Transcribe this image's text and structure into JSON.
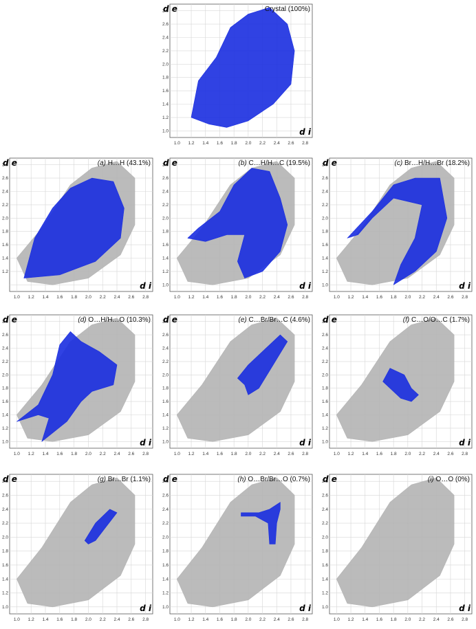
{
  "figure": {
    "axis_x_label": "d i",
    "axis_y_label": "d e"
  },
  "chart_data": [
    {
      "type": "scatter",
      "panel": "crystal",
      "title_prefix": "",
      "title_text": "Crystal (100%)",
      "xlabel": "d i",
      "ylabel": "d e",
      "xlim": [
        0.9,
        2.9
      ],
      "ylim": [
        0.9,
        2.9
      ],
      "xticks": [
        "1.0",
        "1.2",
        "1.4",
        "1.6",
        "1.8",
        "2.0",
        "2.2",
        "2.4",
        "2.6",
        "2.8"
      ],
      "yticks": [
        "1.0",
        "1.2",
        "1.4",
        "1.6",
        "1.8",
        "2.0",
        "2.2",
        "2.4",
        "2.6",
        "2.8"
      ],
      "highlight_color": "#1a2ee0",
      "background_color": "#b4b4b4",
      "highlight_region": [
        [
          1.2,
          1.2
        ],
        [
          1.3,
          1.75
        ],
        [
          1.55,
          2.1
        ],
        [
          1.75,
          2.55
        ],
        [
          2.0,
          2.75
        ],
        [
          2.3,
          2.85
        ],
        [
          2.55,
          2.6
        ],
        [
          2.65,
          2.2
        ],
        [
          2.6,
          1.7
        ],
        [
          2.35,
          1.4
        ],
        [
          2.0,
          1.15
        ],
        [
          1.7,
          1.05
        ],
        [
          1.45,
          1.1
        ]
      ],
      "background_region": null
    },
    {
      "type": "scatter",
      "panel": "a",
      "title_prefix": "(a)",
      "title_text": " H…H (43.1%)",
      "xlabel": "d i",
      "ylabel": "d e",
      "xlim": [
        0.9,
        2.9
      ],
      "ylim": [
        0.9,
        2.9
      ],
      "xticks": [
        "1.0",
        "1.2",
        "1.4",
        "1.6",
        "1.8",
        "2.0",
        "2.2",
        "2.4",
        "2.6",
        "2.8"
      ],
      "yticks": [
        "1.2",
        "1.4",
        "1.6",
        "1.8",
        "2.0",
        "2.2",
        "2.4",
        "2.6",
        "2.8"
      ],
      "highlight_color": "#1a2ee0",
      "background_color": "#b4b4b4",
      "highlight_region": [
        [
          1.1,
          1.1
        ],
        [
          1.25,
          1.7
        ],
        [
          1.5,
          2.15
        ],
        [
          1.75,
          2.45
        ],
        [
          2.05,
          2.6
        ],
        [
          2.35,
          2.55
        ],
        [
          2.5,
          2.15
        ],
        [
          2.45,
          1.7
        ],
        [
          2.1,
          1.35
        ],
        [
          1.6,
          1.15
        ]
      ],
      "background_region": [
        [
          1.0,
          1.4
        ],
        [
          1.35,
          1.85
        ],
        [
          1.75,
          2.5
        ],
        [
          2.05,
          2.75
        ],
        [
          2.4,
          2.85
        ],
        [
          2.65,
          2.6
        ],
        [
          2.65,
          1.9
        ],
        [
          2.45,
          1.45
        ],
        [
          2.0,
          1.1
        ],
        [
          1.5,
          1.0
        ],
        [
          1.15,
          1.05
        ]
      ]
    },
    {
      "type": "scatter",
      "panel": "b",
      "title_prefix": "(b)",
      "title_text": " C…H/H…C (19.5%)",
      "xlabel": "d i",
      "ylabel": "d e",
      "xlim": [
        0.9,
        2.9
      ],
      "ylim": [
        0.9,
        2.9
      ],
      "xticks": [
        "1.0",
        "1.2",
        "1.4",
        "1.6",
        "1.8",
        "2.0",
        "2.2",
        "2.4",
        "2.6",
        "2.8"
      ],
      "yticks": [
        "1.0",
        "1.2",
        "1.4",
        "1.6",
        "1.8",
        "2.0",
        "2.2",
        "2.4",
        "2.6",
        "2.8"
      ],
      "highlight_color": "#1a2ee0",
      "background_color": "#b4b4b4",
      "highlight_region": [
        [
          1.15,
          1.7
        ],
        [
          1.3,
          1.85
        ],
        [
          1.6,
          2.1
        ],
        [
          1.8,
          2.5
        ],
        [
          2.05,
          2.75
        ],
        [
          2.3,
          2.7
        ],
        [
          2.45,
          2.3
        ],
        [
          2.55,
          1.9
        ],
        [
          2.45,
          1.5
        ],
        [
          2.2,
          1.2
        ],
        [
          1.95,
          1.1
        ],
        [
          1.85,
          1.35
        ],
        [
          1.95,
          1.75
        ],
        [
          1.7,
          1.75
        ],
        [
          1.4,
          1.65
        ]
      ],
      "background_region": [
        [
          1.0,
          1.4
        ],
        [
          1.35,
          1.85
        ],
        [
          1.75,
          2.5
        ],
        [
          2.05,
          2.75
        ],
        [
          2.4,
          2.85
        ],
        [
          2.65,
          2.6
        ],
        [
          2.65,
          1.9
        ],
        [
          2.45,
          1.45
        ],
        [
          2.0,
          1.1
        ],
        [
          1.5,
          1.0
        ],
        [
          1.15,
          1.05
        ]
      ]
    },
    {
      "type": "scatter",
      "panel": "c",
      "title_prefix": "(c)",
      "title_text": " Br…H/H…Br (18.2%)",
      "xlabel": "d i",
      "ylabel": "d e",
      "xlim": [
        0.9,
        2.9
      ],
      "ylim": [
        0.9,
        2.9
      ],
      "xticks": [
        "1.0",
        "1.2",
        "1.4",
        "1.6",
        "1.8",
        "2.0",
        "2.2",
        "2.4",
        "2.6",
        "2.8"
      ],
      "yticks": [
        "1.0",
        "1.2",
        "1.4",
        "1.6",
        "1.8",
        "2.0",
        "2.2",
        "2.4",
        "2.6",
        "2.8"
      ],
      "highlight_color": "#1a2ee0",
      "background_color": "#b4b4b4",
      "highlight_region": [
        [
          1.15,
          1.7
        ],
        [
          1.5,
          2.1
        ],
        [
          1.8,
          2.5
        ],
        [
          2.1,
          2.6
        ],
        [
          2.45,
          2.6
        ],
        [
          2.55,
          2.0
        ],
        [
          2.4,
          1.5
        ],
        [
          2.1,
          1.2
        ],
        [
          1.8,
          1.0
        ],
        [
          1.9,
          1.3
        ],
        [
          2.1,
          1.7
        ],
        [
          2.2,
          2.2
        ],
        [
          1.8,
          2.3
        ],
        [
          1.5,
          2.0
        ],
        [
          1.3,
          1.75
        ]
      ],
      "background_region": [
        [
          1.0,
          1.4
        ],
        [
          1.35,
          1.85
        ],
        [
          1.75,
          2.5
        ],
        [
          2.05,
          2.75
        ],
        [
          2.4,
          2.85
        ],
        [
          2.65,
          2.6
        ],
        [
          2.65,
          1.9
        ],
        [
          2.45,
          1.45
        ],
        [
          2.0,
          1.1
        ],
        [
          1.5,
          1.0
        ],
        [
          1.15,
          1.05
        ]
      ]
    },
    {
      "type": "scatter",
      "panel": "d",
      "title_prefix": "(d)",
      "title_text": " O…H/H…O (10.3%)",
      "xlabel": "d i",
      "ylabel": "d e",
      "xlim": [
        0.9,
        2.9
      ],
      "ylim": [
        0.9,
        2.9
      ],
      "xticks": [
        "1.0",
        "1.2",
        "1.4",
        "1.6",
        "1.8",
        "2.0",
        "2.2",
        "2.4",
        "2.6",
        "2.8"
      ],
      "yticks": [
        "1.0",
        "1.2",
        "1.4",
        "1.6",
        "1.8",
        "2.0",
        "2.2",
        "2.4",
        "2.6",
        "2.8"
      ],
      "highlight_color": "#1a2ee0",
      "background_color": "#b4b4b4",
      "highlight_region": [
        [
          1.0,
          1.3
        ],
        [
          1.3,
          1.55
        ],
        [
          1.5,
          2.0
        ],
        [
          1.6,
          2.45
        ],
        [
          1.75,
          2.65
        ],
        [
          1.9,
          2.5
        ],
        [
          2.15,
          2.35
        ],
        [
          2.4,
          2.15
        ],
        [
          2.35,
          1.85
        ],
        [
          2.05,
          1.75
        ],
        [
          1.9,
          1.6
        ],
        [
          1.7,
          1.3
        ],
        [
          1.35,
          1.0
        ],
        [
          1.45,
          1.35
        ],
        [
          1.3,
          1.4
        ]
      ],
      "background_region": [
        [
          1.0,
          1.4
        ],
        [
          1.35,
          1.85
        ],
        [
          1.75,
          2.5
        ],
        [
          2.05,
          2.75
        ],
        [
          2.4,
          2.85
        ],
        [
          2.65,
          2.6
        ],
        [
          2.65,
          1.9
        ],
        [
          2.45,
          1.45
        ],
        [
          2.0,
          1.1
        ],
        [
          1.5,
          1.0
        ],
        [
          1.15,
          1.05
        ]
      ]
    },
    {
      "type": "scatter",
      "panel": "e",
      "title_prefix": "(e)",
      "title_text": " C…Br/Br…C (4.6%)",
      "xlabel": "d i",
      "ylabel": "d e",
      "xlim": [
        0.9,
        2.9
      ],
      "ylim": [
        0.9,
        2.9
      ],
      "xticks": [
        "1.0",
        "1.2",
        "1.4",
        "1.6",
        "1.8",
        "2.0",
        "2.2",
        "2.4",
        "2.6",
        "2.8"
      ],
      "yticks": [
        "1.0",
        "1.2",
        "1.4",
        "1.6",
        "1.8",
        "2.0",
        "2.2",
        "2.4",
        "2.6",
        "2.8"
      ],
      "highlight_color": "#1a2ee0",
      "background_color": "#b4b4b4",
      "highlight_region": [
        [
          1.85,
          1.95
        ],
        [
          2.0,
          2.15
        ],
        [
          2.2,
          2.35
        ],
        [
          2.45,
          2.6
        ],
        [
          2.55,
          2.5
        ],
        [
          2.35,
          2.15
        ],
        [
          2.15,
          1.8
        ],
        [
          2.0,
          1.7
        ],
        [
          1.95,
          1.85
        ]
      ],
      "background_region": [
        [
          1.0,
          1.4
        ],
        [
          1.35,
          1.85
        ],
        [
          1.75,
          2.5
        ],
        [
          2.05,
          2.75
        ],
        [
          2.4,
          2.85
        ],
        [
          2.65,
          2.6
        ],
        [
          2.65,
          1.9
        ],
        [
          2.45,
          1.45
        ],
        [
          2.0,
          1.1
        ],
        [
          1.5,
          1.0
        ],
        [
          1.15,
          1.05
        ]
      ]
    },
    {
      "type": "scatter",
      "panel": "f",
      "title_prefix": "(f)",
      "title_text": " C…O/O…C (1.7%)",
      "xlabel": "d i",
      "ylabel": "d e",
      "xlim": [
        0.9,
        2.9
      ],
      "ylim": [
        0.9,
        2.9
      ],
      "xticks": [
        "1.0",
        "1.2",
        "1.4",
        "1.6",
        "1.8",
        "2.0",
        "2.2",
        "2.4",
        "2.6",
        "2.8"
      ],
      "yticks": [
        "1.0",
        "1.2",
        "1.4",
        "1.6",
        "1.8",
        "2.0",
        "2.2",
        "2.4",
        "2.6",
        "2.8"
      ],
      "highlight_color": "#1a2ee0",
      "background_color": "#b4b4b4",
      "highlight_region": [
        [
          1.65,
          1.9
        ],
        [
          1.75,
          2.1
        ],
        [
          1.95,
          2.0
        ],
        [
          2.05,
          1.8
        ],
        [
          2.15,
          1.7
        ],
        [
          2.05,
          1.6
        ],
        [
          1.9,
          1.65
        ]
      ],
      "background_region": [
        [
          1.0,
          1.4
        ],
        [
          1.35,
          1.85
        ],
        [
          1.75,
          2.5
        ],
        [
          2.05,
          2.75
        ],
        [
          2.4,
          2.85
        ],
        [
          2.65,
          2.6
        ],
        [
          2.65,
          1.9
        ],
        [
          2.45,
          1.45
        ],
        [
          2.0,
          1.1
        ],
        [
          1.5,
          1.0
        ],
        [
          1.15,
          1.05
        ]
      ]
    },
    {
      "type": "scatter",
      "panel": "g",
      "title_prefix": "(g)",
      "title_text": " Br…Br (1.1%)",
      "xlabel": "d i",
      "ylabel": "d e",
      "xlim": [
        0.9,
        2.9
      ],
      "ylim": [
        0.9,
        2.9
      ],
      "xticks": [
        "1.0",
        "1.2",
        "1.4",
        "1.6",
        "1.8",
        "2.0",
        "2.2",
        "2.4",
        "2.6",
        "2.8"
      ],
      "yticks": [
        "1.0",
        "1.2",
        "1.4",
        "1.6",
        "1.8",
        "2.0",
        "2.2",
        "2.4",
        "2.6",
        "2.8"
      ],
      "highlight_color": "#1a2ee0",
      "background_color": "#b4b4b4",
      "highlight_region": [
        [
          1.95,
          1.95
        ],
        [
          2.1,
          2.2
        ],
        [
          2.3,
          2.4
        ],
        [
          2.4,
          2.35
        ],
        [
          2.25,
          2.15
        ],
        [
          2.1,
          1.95
        ],
        [
          2.0,
          1.9
        ]
      ],
      "background_region": [
        [
          1.0,
          1.4
        ],
        [
          1.35,
          1.85
        ],
        [
          1.75,
          2.5
        ],
        [
          2.05,
          2.75
        ],
        [
          2.4,
          2.85
        ],
        [
          2.65,
          2.6
        ],
        [
          2.65,
          1.9
        ],
        [
          2.45,
          1.45
        ],
        [
          2.0,
          1.1
        ],
        [
          1.5,
          1.0
        ],
        [
          1.15,
          1.05
        ]
      ]
    },
    {
      "type": "scatter",
      "panel": "h",
      "title_prefix": "(h)",
      "title_text": " O…Br/Br…O (0.7%)",
      "xlabel": "d i",
      "ylabel": "d e",
      "xlim": [
        0.9,
        2.9
      ],
      "ylim": [
        0.9,
        2.9
      ],
      "xticks": [
        "1.0",
        "1.2",
        "1.4",
        "1.6",
        "1.8",
        "2.0",
        "2.2",
        "2.4",
        "2.6",
        "2.8"
      ],
      "yticks": [
        "1.0",
        "1.2",
        "1.4",
        "1.6",
        "1.8",
        "2.0",
        "2.2",
        "2.4",
        "2.6",
        "2.8"
      ],
      "highlight_color": "#1a2ee0",
      "background_color": "#b4b4b4",
      "highlight_region": [
        [
          1.9,
          2.35
        ],
        [
          2.15,
          2.35
        ],
        [
          2.3,
          2.4
        ],
        [
          2.45,
          2.5
        ],
        [
          2.45,
          2.4
        ],
        [
          2.4,
          2.2
        ],
        [
          2.38,
          1.9
        ],
        [
          2.3,
          1.9
        ],
        [
          2.28,
          2.2
        ],
        [
          2.1,
          2.3
        ],
        [
          1.9,
          2.3
        ]
      ],
      "background_region": [
        [
          1.0,
          1.4
        ],
        [
          1.35,
          1.85
        ],
        [
          1.75,
          2.5
        ],
        [
          2.05,
          2.75
        ],
        [
          2.4,
          2.85
        ],
        [
          2.65,
          2.6
        ],
        [
          2.65,
          1.9
        ],
        [
          2.45,
          1.45
        ],
        [
          2.0,
          1.1
        ],
        [
          1.5,
          1.0
        ],
        [
          1.15,
          1.05
        ]
      ]
    },
    {
      "type": "scatter",
      "panel": "i",
      "title_prefix": "(i)",
      "title_text": " O…O (0%)",
      "xlabel": "d i",
      "ylabel": "d e",
      "xlim": [
        0.9,
        2.9
      ],
      "ylim": [
        0.9,
        2.9
      ],
      "xticks": [
        "1.0",
        "1.2",
        "1.4",
        "1.6",
        "1.8",
        "2.0",
        "2.2",
        "2.4",
        "2.6",
        "2.8"
      ],
      "yticks": [
        "1.0",
        "1.2",
        "1.4",
        "1.6",
        "1.8",
        "2.0",
        "2.2",
        "2.4",
        "2.6",
        "2.8"
      ],
      "highlight_color": "#1a2ee0",
      "background_color": "#b4b4b4",
      "highlight_region": null,
      "background_region": [
        [
          1.0,
          1.4
        ],
        [
          1.35,
          1.85
        ],
        [
          1.75,
          2.5
        ],
        [
          2.05,
          2.75
        ],
        [
          2.4,
          2.85
        ],
        [
          2.65,
          2.6
        ],
        [
          2.65,
          1.9
        ],
        [
          2.45,
          1.45
        ],
        [
          2.0,
          1.1
        ],
        [
          1.5,
          1.0
        ],
        [
          1.15,
          1.05
        ]
      ]
    }
  ]
}
